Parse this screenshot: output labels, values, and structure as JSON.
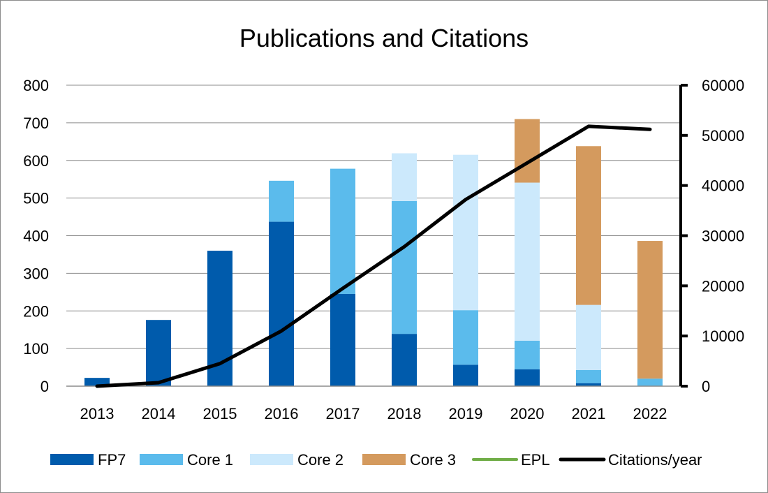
{
  "chart_data": {
    "type": "bar",
    "title": "Publications and Citations",
    "categories": [
      "2013",
      "2014",
      "2015",
      "2016",
      "2017",
      "2018",
      "2019",
      "2020",
      "2021",
      "2022"
    ],
    "stacked": true,
    "series": [
      {
        "name": "FP7",
        "type": "bar",
        "axis": "left",
        "color": "#005bac",
        "values": [
          22,
          176,
          360,
          437,
          245,
          139,
          57,
          45,
          8,
          0
        ]
      },
      {
        "name": "Core 1",
        "type": "bar",
        "axis": "left",
        "color": "#5bbbec",
        "values": [
          0,
          0,
          0,
          109,
          333,
          353,
          145,
          76,
          35,
          20
        ]
      },
      {
        "name": "Core 2",
        "type": "bar",
        "axis": "left",
        "color": "#cce9fc",
        "values": [
          0,
          0,
          0,
          0,
          0,
          127,
          413,
          420,
          173,
          0
        ]
      },
      {
        "name": "Core 3",
        "type": "bar",
        "axis": "left",
        "color": "#d49a5e",
        "values": [
          0,
          0,
          0,
          0,
          0,
          0,
          0,
          169,
          422,
          366
        ]
      },
      {
        "name": "EPL",
        "type": "bar",
        "axis": "left",
        "color": "#70ad47",
        "values": [
          0,
          0,
          0,
          0,
          0,
          0,
          0,
          0,
          0,
          0
        ]
      },
      {
        "name": "Citations/year",
        "type": "line",
        "axis": "right",
        "color": "#000000",
        "values": [
          0,
          700,
          4500,
          11000,
          19500,
          27800,
          37200,
          44500,
          51800,
          51200
        ]
      }
    ],
    "y_left": {
      "min": 0,
      "max": 800,
      "ticks": [
        0,
        100,
        200,
        300,
        400,
        500,
        600,
        700,
        800
      ]
    },
    "y_right": {
      "min": 0,
      "max": 60000,
      "ticks": [
        0,
        10000,
        20000,
        30000,
        40000,
        50000,
        60000
      ]
    },
    "grid": true,
    "legend": "bottom"
  }
}
